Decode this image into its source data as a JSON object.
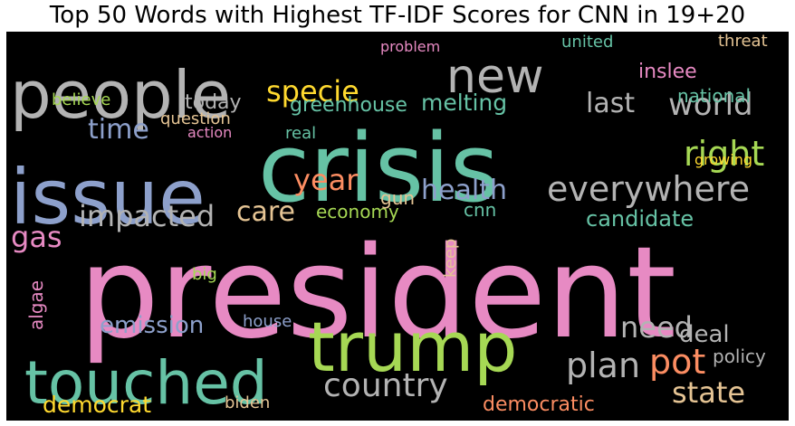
{
  "chart_data": {
    "type": "wordcloud",
    "title": "Top 50 Words with Highest TF-IDF Scores for CNN in 19+20",
    "background": "#000000",
    "colormap": "Set2",
    "palette": [
      "#66c2a5",
      "#fc8d62",
      "#8da0cb",
      "#e78ac3",
      "#a6d854",
      "#ffd92f",
      "#e5c494",
      "#b3b3b3"
    ],
    "words": [
      {
        "text": "president",
        "weight": 1.0,
        "color": "#e78ac3",
        "rotated": false
      },
      {
        "text": "crisis",
        "weight": 0.82,
        "color": "#66c2a5",
        "rotated": false
      },
      {
        "text": "issue",
        "weight": 0.6,
        "color": "#8da0cb",
        "rotated": false
      },
      {
        "text": "trump",
        "weight": 0.55,
        "color": "#a6d854",
        "rotated": false
      },
      {
        "text": "people",
        "weight": 0.5,
        "color": "#b3b3b3",
        "rotated": false
      },
      {
        "text": "touched",
        "weight": 0.45,
        "color": "#66c2a5",
        "rotated": false
      },
      {
        "text": "new",
        "weight": 0.33,
        "color": "#b3b3b3",
        "rotated": false
      },
      {
        "text": "everywhere",
        "weight": 0.24,
        "color": "#b3b3b3",
        "rotated": false
      },
      {
        "text": "country",
        "weight": 0.22,
        "color": "#b3b3b3",
        "rotated": false
      },
      {
        "text": "plan",
        "weight": 0.22,
        "color": "#b3b3b3",
        "rotated": false
      },
      {
        "text": "pot",
        "weight": 0.22,
        "color": "#fc8d62",
        "rotated": false
      },
      {
        "text": "world",
        "weight": 0.21,
        "color": "#b3b3b3",
        "rotated": false
      },
      {
        "text": "right",
        "weight": 0.2,
        "color": "#a6d854",
        "rotated": false
      },
      {
        "text": "impacted",
        "weight": 0.19,
        "color": "#b3b3b3",
        "rotated": false
      },
      {
        "text": "year",
        "weight": 0.19,
        "color": "#fc8d62",
        "rotated": false
      },
      {
        "text": "need",
        "weight": 0.18,
        "color": "#b3b3b3",
        "rotated": false
      },
      {
        "text": "state",
        "weight": 0.18,
        "color": "#e5c494",
        "rotated": false
      },
      {
        "text": "specie",
        "weight": 0.17,
        "color": "#ffd92f",
        "rotated": false
      },
      {
        "text": "care",
        "weight": 0.17,
        "color": "#e5c494",
        "rotated": false
      },
      {
        "text": "health",
        "weight": 0.17,
        "color": "#8da0cb",
        "rotated": false
      },
      {
        "text": "gas",
        "weight": 0.17,
        "color": "#e78ac3",
        "rotated": false
      },
      {
        "text": "time",
        "weight": 0.16,
        "color": "#8da0cb",
        "rotated": false
      },
      {
        "text": "last",
        "weight": 0.15,
        "color": "#b3b3b3",
        "rotated": false
      },
      {
        "text": "emission",
        "weight": 0.15,
        "color": "#8da0cb",
        "rotated": false
      },
      {
        "text": "deal",
        "weight": 0.15,
        "color": "#b3b3b3",
        "rotated": false
      },
      {
        "text": "democrat",
        "weight": 0.14,
        "color": "#ffd92f",
        "rotated": false
      },
      {
        "text": "melting",
        "weight": 0.14,
        "color": "#66c2a5",
        "rotated": false
      },
      {
        "text": "candidate",
        "weight": 0.13,
        "color": "#66c2a5",
        "rotated": false
      },
      {
        "text": "greenhouse",
        "weight": 0.12,
        "color": "#66c2a5",
        "rotated": false
      },
      {
        "text": "today",
        "weight": 0.11,
        "color": "#b3b3b3",
        "rotated": false
      },
      {
        "text": "algae",
        "weight": 0.11,
        "color": "#e78ac3",
        "rotated": true
      },
      {
        "text": "inslee",
        "weight": 0.11,
        "color": "#e78ac3",
        "rotated": false
      },
      {
        "text": "democratic",
        "weight": 0.11,
        "color": "#fc8d62",
        "rotated": false
      },
      {
        "text": "national",
        "weight": 0.1,
        "color": "#66c2a5",
        "rotated": false
      },
      {
        "text": "policy",
        "weight": 0.1,
        "color": "#b3b3b3",
        "rotated": false
      },
      {
        "text": "economy",
        "weight": 0.1,
        "color": "#a6d854",
        "rotated": false
      },
      {
        "text": "keep",
        "weight": 0.1,
        "color": "#e5c494",
        "rotated": true
      },
      {
        "text": "gun",
        "weight": 0.1,
        "color": "#e5c494",
        "rotated": false
      },
      {
        "text": "cnn",
        "weight": 0.1,
        "color": "#66c2a5",
        "rotated": false
      },
      {
        "text": "question",
        "weight": 0.1,
        "color": "#e5c494",
        "rotated": false
      },
      {
        "text": "united",
        "weight": 0.1,
        "color": "#66c2a5",
        "rotated": false
      },
      {
        "text": "threat",
        "weight": 0.1,
        "color": "#e5c494",
        "rotated": false
      },
      {
        "text": "biden",
        "weight": 0.1,
        "color": "#e5c494",
        "rotated": false
      },
      {
        "text": "big",
        "weight": 0.1,
        "color": "#a6d854",
        "rotated": false
      },
      {
        "text": "house",
        "weight": 0.09,
        "color": "#8da0cb",
        "rotated": false
      },
      {
        "text": "believe",
        "weight": 0.09,
        "color": "#a6d854",
        "rotated": false
      },
      {
        "text": "real",
        "weight": 0.09,
        "color": "#66c2a5",
        "rotated": false
      },
      {
        "text": "problem",
        "weight": 0.09,
        "color": "#e78ac3",
        "rotated": false
      },
      {
        "text": "growing",
        "weight": 0.08,
        "color": "#ffd92f",
        "rotated": false
      },
      {
        "text": "action",
        "weight": 0.08,
        "color": "#e78ac3",
        "rotated": false
      }
    ]
  }
}
